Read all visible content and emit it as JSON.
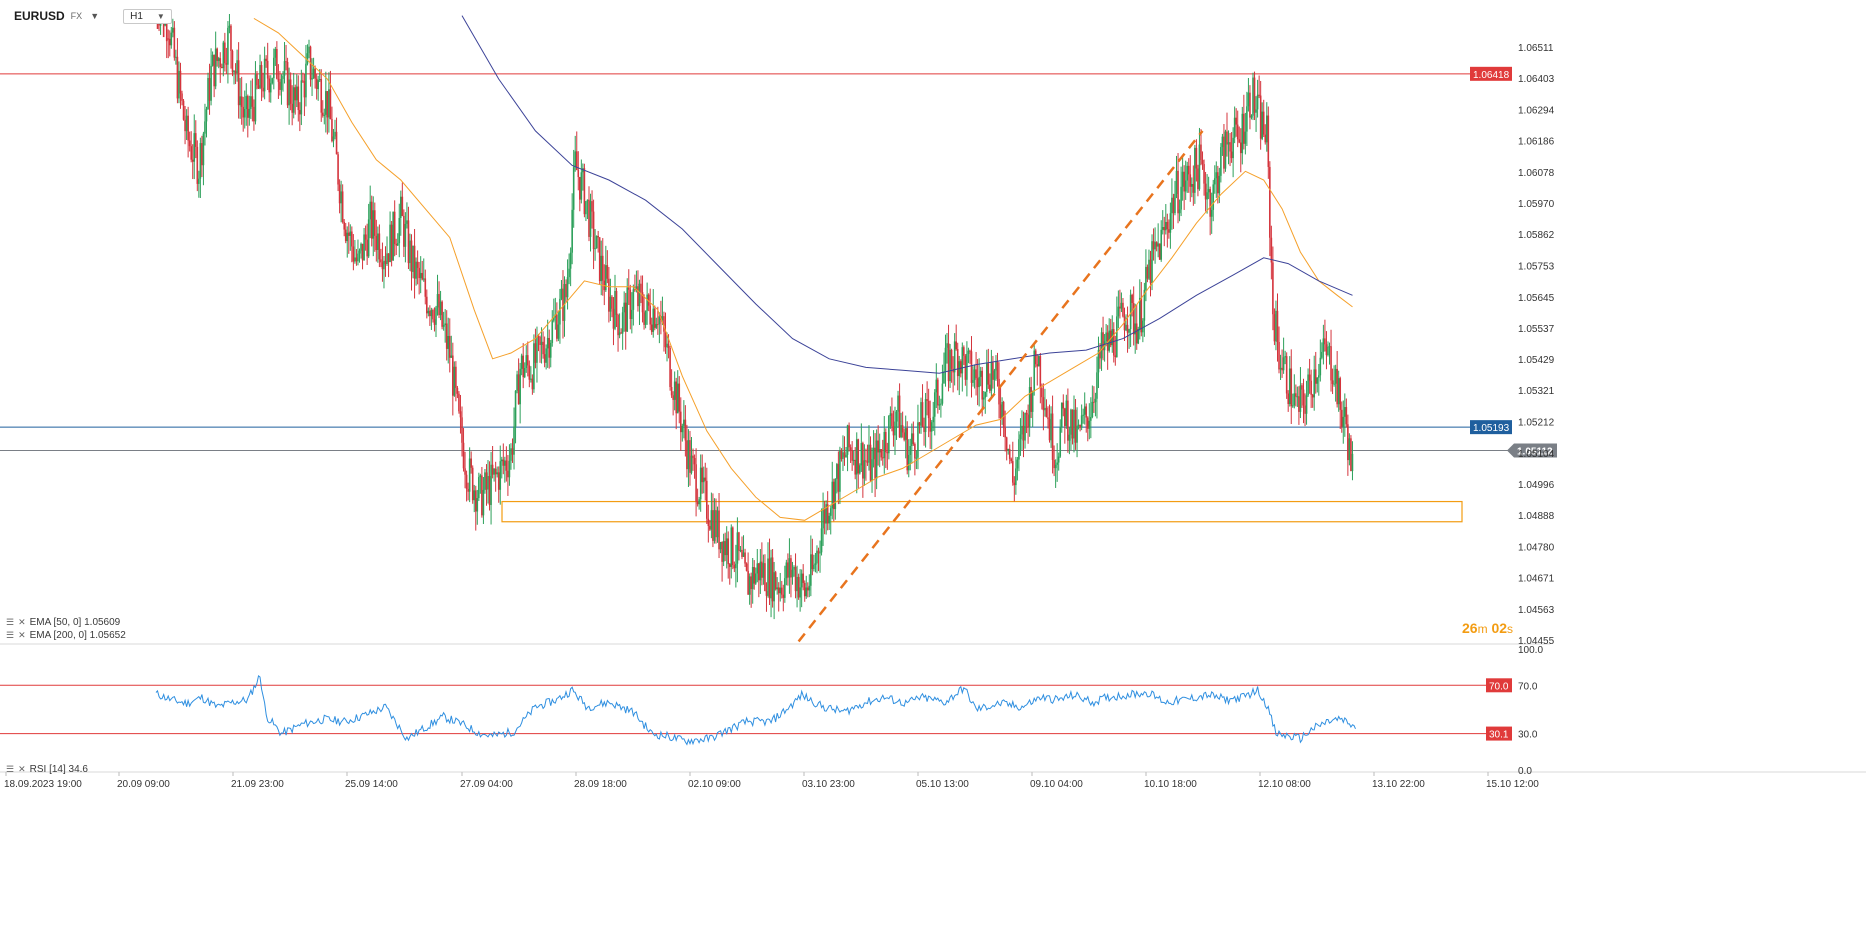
{
  "header": {
    "symbol": "EURUSD",
    "symbol_type": "FX",
    "timeframe": "H1",
    "dropdown_icon": "chevron-down-icon"
  },
  "chart_data": {
    "type": "candlestick",
    "instrument": "EURUSD",
    "timeframe": "H1",
    "ylim": [
      1.044,
      1.066
    ],
    "y_ticks": [
      "1.06511",
      "1.06403",
      "1.06294",
      "1.06186",
      "1.06078",
      "1.05970",
      "1.05862",
      "1.05753",
      "1.05645",
      "1.05537",
      "1.05429",
      "1.05321",
      "1.05212",
      "1.05104",
      "1.04996",
      "1.04888",
      "1.04780",
      "1.04671",
      "1.04563",
      "1.04455"
    ],
    "x_ticks": [
      "18.09.2023 19:00",
      "20.09 09:00",
      "21.09 23:00",
      "25.09 14:00",
      "27.09 04:00",
      "28.09 18:00",
      "02.10 09:00",
      "03.10 23:00",
      "05.10 13:00",
      "09.10 04:00",
      "10.10 18:00",
      "12.10 08:00",
      "13.10 22:00",
      "15.10 12:00"
    ],
    "price_path": [
      [
        0,
        1.067
      ],
      [
        8,
        1.066
      ],
      [
        20,
        1.062
      ],
      [
        28,
        1.061
      ],
      [
        36,
        1.0642
      ],
      [
        48,
        1.0655
      ],
      [
        58,
        1.0625
      ],
      [
        70,
        1.064
      ],
      [
        80,
        1.0645
      ],
      [
        92,
        1.063
      ],
      [
        100,
        1.0645
      ],
      [
        112,
        1.0632
      ],
      [
        124,
        1.059
      ],
      [
        132,
        1.0575
      ],
      [
        140,
        1.059
      ],
      [
        150,
        1.058
      ],
      [
        160,
        1.0592
      ],
      [
        168,
        1.0575
      ],
      [
        176,
        1.0565
      ],
      [
        184,
        1.056
      ],
      [
        192,
        1.0545
      ],
      [
        198,
        1.052
      ],
      [
        204,
        1.0503
      ],
      [
        212,
        1.0495
      ],
      [
        220,
        1.05
      ],
      [
        232,
        1.051
      ],
      [
        238,
        1.054
      ],
      [
        246,
        1.054
      ],
      [
        256,
        1.055
      ],
      [
        268,
        1.0565
      ],
      [
        274,
        1.061
      ],
      [
        280,
        1.06
      ],
      [
        288,
        1.058
      ],
      [
        296,
        1.0565
      ],
      [
        304,
        1.0555
      ],
      [
        312,
        1.0565
      ],
      [
        320,
        1.056
      ],
      [
        328,
        1.056
      ],
      [
        338,
        1.0535
      ],
      [
        350,
        1.0505
      ],
      [
        362,
        1.049
      ],
      [
        370,
        1.048
      ],
      [
        380,
        1.0475
      ],
      [
        386,
        1.0465
      ],
      [
        394,
        1.047
      ],
      [
        400,
        1.0468
      ],
      [
        408,
        1.0465
      ],
      [
        416,
        1.047
      ],
      [
        424,
        1.0462
      ],
      [
        430,
        1.047
      ],
      [
        436,
        1.0488
      ],
      [
        444,
        1.05
      ],
      [
        452,
        1.0512
      ],
      [
        460,
        1.051
      ],
      [
        468,
        1.0505
      ],
      [
        476,
        1.0515
      ],
      [
        484,
        1.0525
      ],
      [
        492,
        1.051
      ],
      [
        500,
        1.052
      ],
      [
        508,
        1.0525
      ],
      [
        516,
        1.054
      ],
      [
        524,
        1.0545
      ],
      [
        530,
        1.054
      ],
      [
        538,
        1.0535
      ],
      [
        546,
        1.054
      ],
      [
        554,
        1.0525
      ],
      [
        560,
        1.05
      ],
      [
        568,
        1.052
      ],
      [
        576,
        1.0545
      ],
      [
        584,
        1.052
      ],
      [
        588,
        1.051
      ],
      [
        594,
        1.0525
      ],
      [
        602,
        1.0515
      ],
      [
        610,
        1.0525
      ],
      [
        618,
        1.0545
      ],
      [
        626,
        1.055
      ],
      [
        634,
        1.056
      ],
      [
        642,
        1.0555
      ],
      [
        650,
        1.0575
      ],
      [
        658,
        1.0585
      ],
      [
        666,
        1.06
      ],
      [
        674,
        1.0605
      ],
      [
        682,
        1.061
      ],
      [
        690,
        1.0598
      ],
      [
        696,
        1.0612
      ],
      [
        702,
        1.062
      ],
      [
        708,
        1.0618
      ],
      [
        712,
        1.0628
      ],
      [
        716,
        1.0635
      ],
      [
        722,
        1.0625
      ],
      [
        726,
        1.062
      ],
      [
        730,
        1.056
      ],
      [
        734,
        1.0545
      ],
      [
        740,
        1.0535
      ],
      [
        746,
        1.0525
      ],
      [
        752,
        1.053
      ],
      [
        758,
        1.054
      ],
      [
        764,
        1.0545
      ],
      [
        770,
        1.054
      ],
      [
        774,
        1.0525
      ],
      [
        778,
        1.052
      ],
      [
        780,
        1.051
      ],
      [
        782,
        1.0505
      ]
    ],
    "series": [
      {
        "name": "EMA [50, 0]",
        "last_value": 1.05609,
        "color": "#f5a02a",
        "points": [
          [
            64,
            1.0661
          ],
          [
            80,
            1.0656
          ],
          [
            96,
            1.0648
          ],
          [
            112,
            1.064
          ],
          [
            128,
            1.0625
          ],
          [
            144,
            1.0612
          ],
          [
            160,
            1.0605
          ],
          [
            176,
            1.0595
          ],
          [
            192,
            1.0585
          ],
          [
            208,
            1.056
          ],
          [
            220,
            1.0543
          ],
          [
            232,
            1.0545
          ],
          [
            248,
            1.055
          ],
          [
            264,
            1.056
          ],
          [
            280,
            1.057
          ],
          [
            296,
            1.0568
          ],
          [
            312,
            1.0568
          ],
          [
            328,
            1.056
          ],
          [
            344,
            1.0537
          ],
          [
            360,
            1.0518
          ],
          [
            376,
            1.0505
          ],
          [
            392,
            1.0495
          ],
          [
            408,
            1.0488
          ],
          [
            424,
            1.0487
          ],
          [
            440,
            1.0492
          ],
          [
            456,
            1.0497
          ],
          [
            472,
            1.0502
          ],
          [
            488,
            1.0505
          ],
          [
            504,
            1.051
          ],
          [
            520,
            1.0515
          ],
          [
            536,
            1.052
          ],
          [
            552,
            1.0522
          ],
          [
            568,
            1.053
          ],
          [
            584,
            1.0535
          ],
          [
            600,
            1.054
          ],
          [
            616,
            1.0545
          ],
          [
            632,
            1.0555
          ],
          [
            648,
            1.0567
          ],
          [
            664,
            1.0578
          ],
          [
            680,
            1.059
          ],
          [
            696,
            1.06
          ],
          [
            712,
            1.0608
          ],
          [
            724,
            1.0605
          ],
          [
            736,
            1.0595
          ],
          [
            748,
            1.058
          ],
          [
            760,
            1.057
          ],
          [
            772,
            1.0565
          ],
          [
            782,
            1.0561
          ]
        ]
      },
      {
        "name": "EMA [200, 0]",
        "last_value": 1.05652,
        "color": "#3c4398",
        "points": [
          [
            200,
            1.0662
          ],
          [
            224,
            1.064
          ],
          [
            248,
            1.0622
          ],
          [
            272,
            1.061
          ],
          [
            296,
            1.0605
          ],
          [
            320,
            1.0598
          ],
          [
            344,
            1.0588
          ],
          [
            368,
            1.0575
          ],
          [
            392,
            1.0562
          ],
          [
            416,
            1.055
          ],
          [
            440,
            1.0543
          ],
          [
            464,
            1.054
          ],
          [
            488,
            1.0539
          ],
          [
            512,
            1.0538
          ],
          [
            536,
            1.0541
          ],
          [
            560,
            1.0543
          ],
          [
            584,
            1.0545
          ],
          [
            608,
            1.0546
          ],
          [
            632,
            1.055
          ],
          [
            656,
            1.0557
          ],
          [
            680,
            1.0565
          ],
          [
            704,
            1.0572
          ],
          [
            724,
            1.0578
          ],
          [
            740,
            1.0576
          ],
          [
            760,
            1.057
          ],
          [
            782,
            1.0565
          ]
        ]
      }
    ],
    "rsi": {
      "name": "RSI [14]",
      "last_value": 34.6,
      "ylim": [
        0,
        100
      ],
      "levels": [
        70.0,
        30.1
      ],
      "y_ticks": [
        "100.0",
        "70.0",
        "30.0",
        "0.0"
      ],
      "level_labels": [
        "70.0",
        "30.1"
      ],
      "points": [
        [
          0,
          63
        ],
        [
          10,
          58
        ],
        [
          20,
          55
        ],
        [
          30,
          60
        ],
        [
          40,
          52
        ],
        [
          50,
          56
        ],
        [
          60,
          58
        ],
        [
          68,
          78
        ],
        [
          72,
          45
        ],
        [
          82,
          30
        ],
        [
          96,
          38
        ],
        [
          110,
          42
        ],
        [
          124,
          40
        ],
        [
          140,
          47
        ],
        [
          150,
          52
        ],
        [
          164,
          26
        ],
        [
          176,
          35
        ],
        [
          188,
          44
        ],
        [
          200,
          38
        ],
        [
          212,
          30
        ],
        [
          220,
          28
        ],
        [
          234,
          32
        ],
        [
          248,
          52
        ],
        [
          262,
          58
        ],
        [
          272,
          66
        ],
        [
          282,
          52
        ],
        [
          296,
          56
        ],
        [
          312,
          48
        ],
        [
          324,
          30
        ],
        [
          334,
          28
        ],
        [
          346,
          24
        ],
        [
          362,
          26
        ],
        [
          372,
          32
        ],
        [
          386,
          40
        ],
        [
          402,
          40
        ],
        [
          414,
          52
        ],
        [
          422,
          62
        ],
        [
          436,
          52
        ],
        [
          450,
          48
        ],
        [
          464,
          56
        ],
        [
          476,
          60
        ],
        [
          490,
          55
        ],
        [
          500,
          60
        ],
        [
          516,
          56
        ],
        [
          528,
          68
        ],
        [
          536,
          50
        ],
        [
          552,
          55
        ],
        [
          566,
          52
        ],
        [
          578,
          60
        ],
        [
          590,
          58
        ],
        [
          600,
          62
        ],
        [
          612,
          56
        ],
        [
          622,
          60
        ],
        [
          634,
          62
        ],
        [
          648,
          64
        ],
        [
          660,
          56
        ],
        [
          672,
          58
        ],
        [
          688,
          62
        ],
        [
          700,
          58
        ],
        [
          710,
          60
        ],
        [
          720,
          66
        ],
        [
          726,
          54
        ],
        [
          732,
          30
        ],
        [
          740,
          28
        ],
        [
          748,
          26
        ],
        [
          756,
          34
        ],
        [
          766,
          40
        ],
        [
          774,
          42
        ],
        [
          780,
          38
        ],
        [
          784,
          35
        ]
      ]
    },
    "horizontal_lines": [
      {
        "label": "1.06418",
        "value": 1.06418,
        "color": "#e03a3a"
      },
      {
        "label": "1.05193",
        "value": 1.05193,
        "color": "#1f5f9e"
      },
      {
        "label": "1.05112",
        "value": 1.05112,
        "color": "#7a7f86",
        "current": true
      }
    ],
    "zone": {
      "from": 1.04865,
      "to": 1.04935,
      "color": "#f39c12"
    },
    "trendline": {
      "points": [
        [
          420,
          1.0445
        ],
        [
          684,
          1.0622
        ]
      ],
      "color": "#e8741e",
      "style": "dashed"
    },
    "legend": [
      "EMA [50, 0] 1.05609",
      "EMA [200, 0] 1.05652"
    ],
    "rsi_legend": "RSI [14] 34.6",
    "countdown": {
      "minutes": "26",
      "min_unit": "m",
      "seconds": "02",
      "sec_unit": "s"
    }
  }
}
